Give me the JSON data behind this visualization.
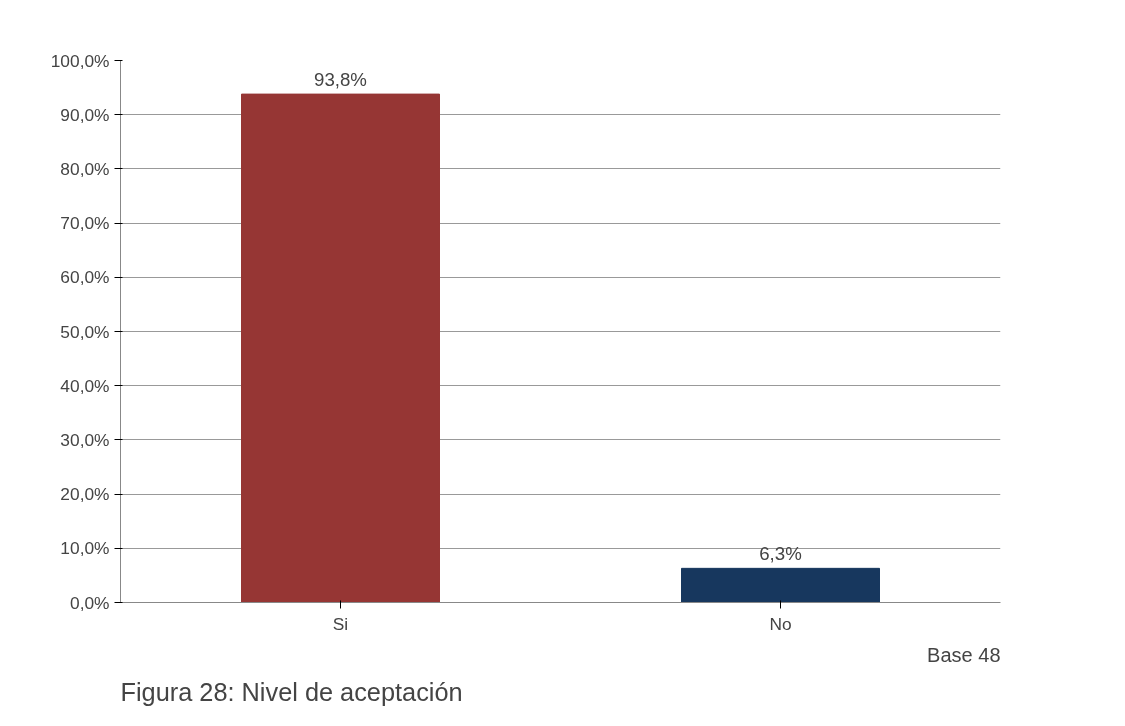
{
  "chart_data": {
    "type": "bar",
    "categories": [
      "Si",
      "No"
    ],
    "values": [
      93.8,
      6.3
    ],
    "colors": [
      "#963634",
      "#17375e"
    ],
    "value_labels": [
      "93,8%",
      "6,3%"
    ],
    "ylim": [
      0,
      100
    ],
    "yticks": [
      {
        "value": 0,
        "label": "0,0%"
      },
      {
        "value": 10,
        "label": "10,0%"
      },
      {
        "value": 20,
        "label": "20,0%"
      },
      {
        "value": 30,
        "label": "30,0%"
      },
      {
        "value": 40,
        "label": "40,0%"
      },
      {
        "value": 50,
        "label": "50,0%"
      },
      {
        "value": 60,
        "label": "60,0%"
      },
      {
        "value": 70,
        "label": "70,0%"
      },
      {
        "value": 80,
        "label": "80,0%"
      },
      {
        "value": 90,
        "label": "90,0%"
      },
      {
        "value": 100,
        "label": "100,0%"
      }
    ],
    "grid": "y",
    "annotations": [
      "Base 48",
      "Figura 28: Nivel de aceptación"
    ]
  }
}
